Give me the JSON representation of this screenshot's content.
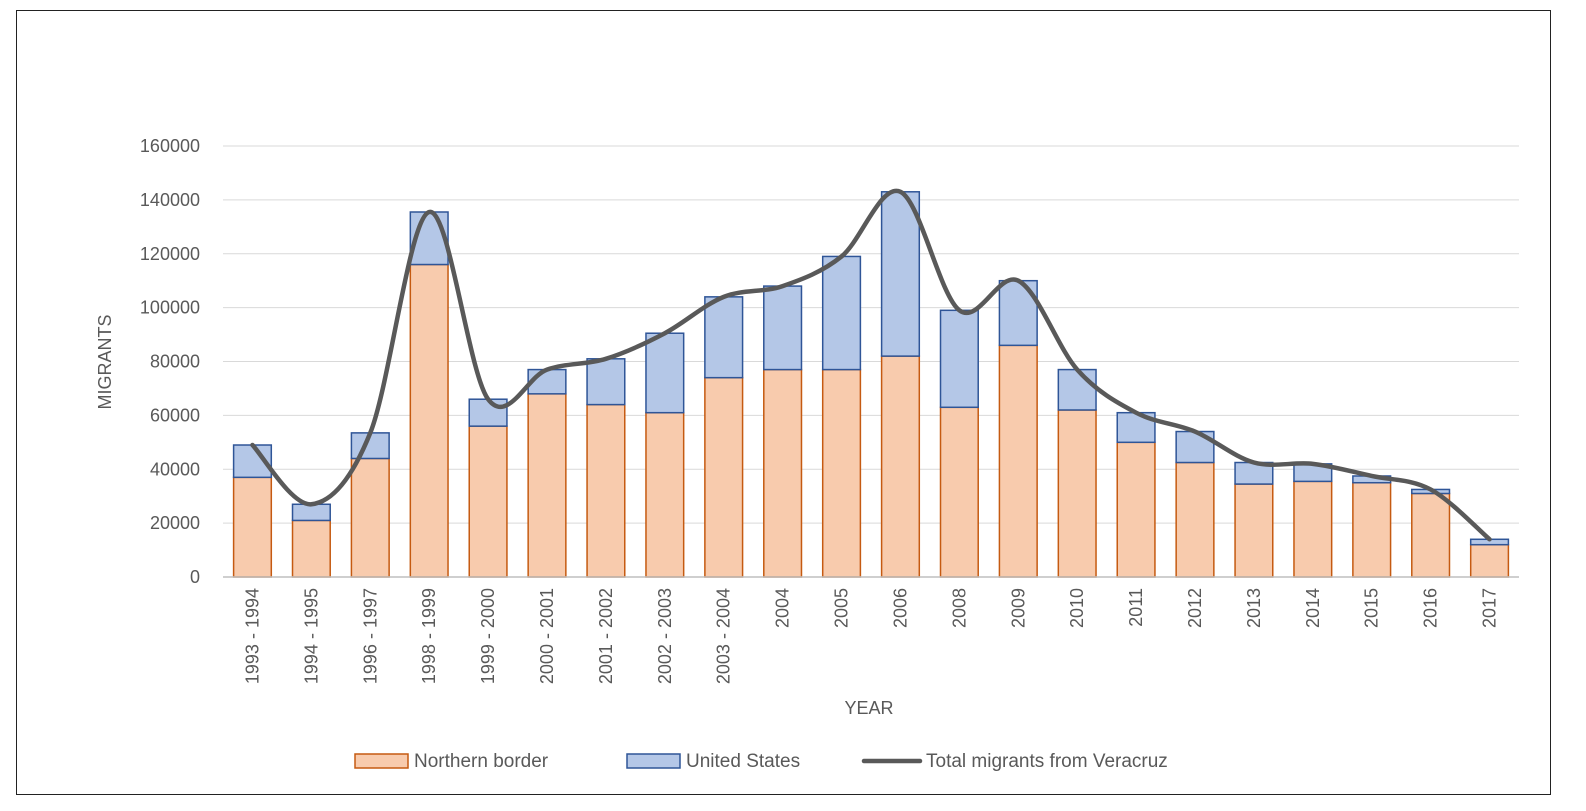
{
  "chart_data": {
    "type": "bar",
    "stacked": true,
    "xlabel": "YEAR",
    "ylabel": "MIGRANTS",
    "ylim": [
      0,
      160000
    ],
    "yticks": [
      "0",
      "20000",
      "40000",
      "60000",
      "80000",
      "100000",
      "120000",
      "140000",
      "160000"
    ],
    "grid": "horizontal",
    "legend_position": "bottom",
    "categories": [
      "1993 - 1994",
      "1994 - 1995",
      "1996 - 1997",
      "1998 - 1999",
      "1999 - 2000",
      "2000 - 2001",
      "2001 - 2002",
      "2002 - 2003",
      "2003 - 2004",
      "2004",
      "2005",
      "2006",
      "2008",
      "2009",
      "2010",
      "2011",
      "2012",
      "2013",
      "2014",
      "2015",
      "2016",
      "2017"
    ],
    "series": [
      {
        "name": "Northern border",
        "kind": "bar",
        "fill": "#f8cbad",
        "stroke": "#c55a11",
        "values": [
          37000,
          21000,
          44000,
          116000,
          56000,
          68000,
          64000,
          61000,
          74000,
          77000,
          77000,
          82000,
          63000,
          86000,
          62000,
          50000,
          42500,
          34500,
          35500,
          35000,
          31000,
          12000
        ]
      },
      {
        "name": "United States",
        "kind": "bar",
        "fill": "#b4c7e7",
        "stroke": "#2f5597",
        "values": [
          12000,
          6000,
          9500,
          19500,
          10000,
          9000,
          17000,
          29500,
          30000,
          31000,
          42000,
          61000,
          36000,
          24000,
          15000,
          11000,
          11500,
          8000,
          6500,
          2500,
          1500,
          2000
        ]
      },
      {
        "name": "Total migrants from Veracruz",
        "kind": "line",
        "stroke": "#595959",
        "values": [
          49000,
          27000,
          53500,
          135500,
          66000,
          77000,
          81000,
          90500,
          104000,
          108000,
          119000,
          143000,
          99000,
          110000,
          77000,
          61000,
          54000,
          42500,
          42000,
          37500,
          32500,
          14000
        ]
      }
    ]
  }
}
